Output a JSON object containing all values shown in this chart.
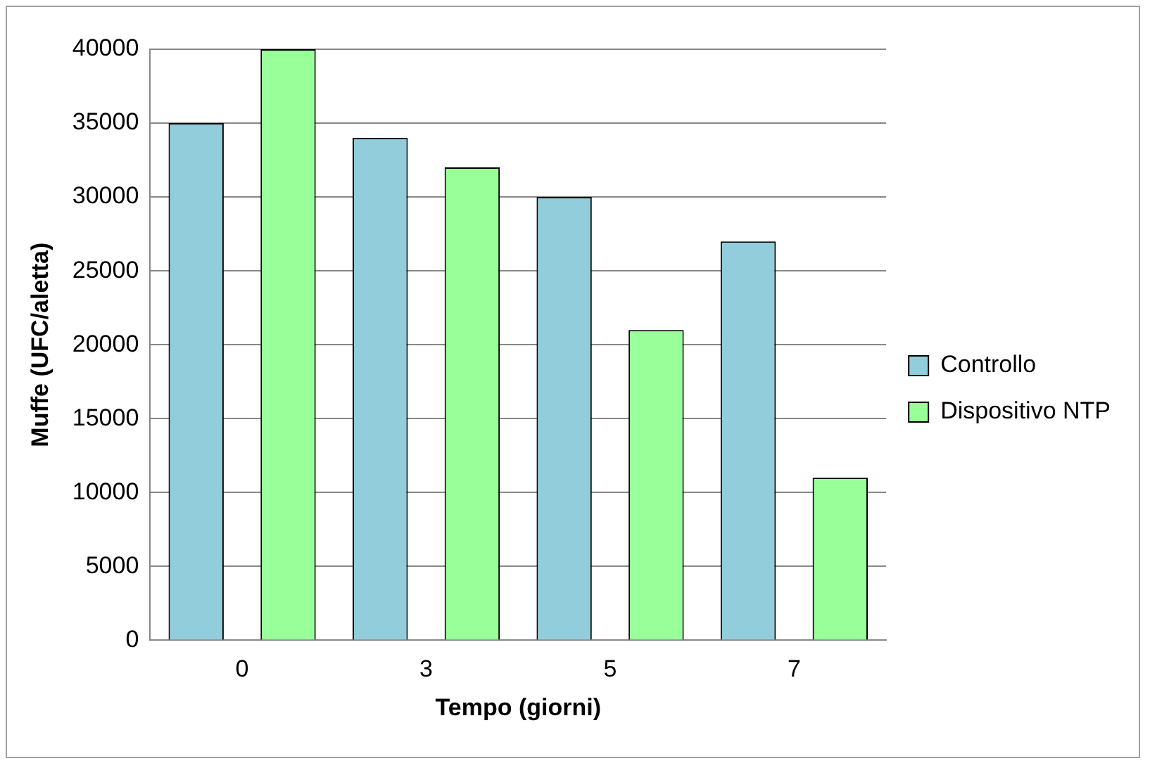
{
  "chart_data": {
    "type": "bar",
    "xlabel": "Tempo (giorni)",
    "ylabel": "Muffe (UFC/aletta)",
    "categories": [
      "0",
      "3",
      "5",
      "7"
    ],
    "series": [
      {
        "name": "Controllo",
        "color": "#92cddc",
        "values": [
          35000,
          34000,
          30000,
          27000
        ]
      },
      {
        "name": "Dispositivo NTP",
        "color": "#99ff99",
        "values": [
          40000,
          32000,
          21000,
          11000
        ]
      }
    ],
    "ylim": [
      0,
      40000
    ],
    "yticks": [
      0,
      5000,
      10000,
      15000,
      20000,
      25000,
      30000,
      35000,
      40000
    ],
    "grid": "y",
    "legend": "right"
  }
}
